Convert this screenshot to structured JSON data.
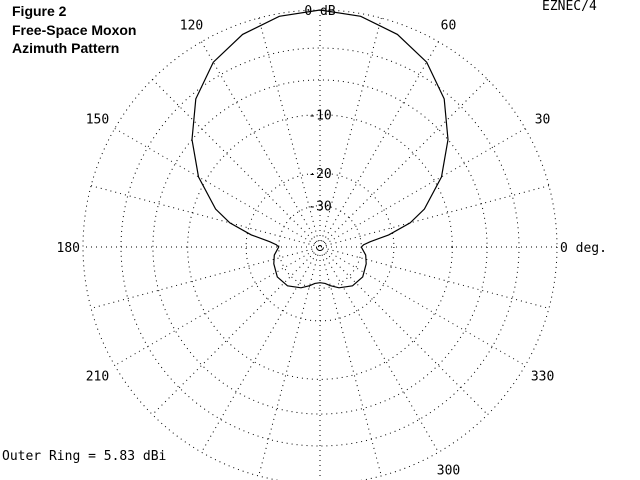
{
  "chart_data": {
    "type": "polar",
    "title_lines": [
      "Figure 2",
      "Free-Space Moxon",
      "Azimuth Pattern"
    ],
    "program": "EZNEC/4",
    "footer": "Outer Ring = 5.83 dBi",
    "ring_labels": [
      "0 dB",
      "-10",
      "-20",
      "-30"
    ],
    "angle_labels": [
      {
        "angle": 0,
        "text": "0 deg."
      },
      {
        "angle": 30,
        "text": "30"
      },
      {
        "angle": 60,
        "text": "60"
      },
      {
        "angle": 120,
        "text": "120"
      },
      {
        "angle": 150,
        "text": "150"
      },
      {
        "angle": 180,
        "text": "180"
      },
      {
        "angle": 210,
        "text": "210"
      },
      {
        "angle": 300,
        "text": "300"
      },
      {
        "angle": 330,
        "text": "330"
      }
    ],
    "outer_ring_dbi": 5.83,
    "series": [
      {
        "values": [
          {
            "az": 0,
            "db": -30.0
          },
          {
            "az": 3,
            "db": -29.0
          },
          {
            "az": 6,
            "db": -26.5
          },
          {
            "az": 10,
            "db": -21.0
          },
          {
            "az": 15,
            "db": -16.0
          },
          {
            "az": 20,
            "db": -13.0
          },
          {
            "az": 30,
            "db": -9.0
          },
          {
            "az": 40,
            "db": -6.0
          },
          {
            "az": 50,
            "db": -3.5
          },
          {
            "az": 60,
            "db": -1.8
          },
          {
            "az": 70,
            "db": -0.8
          },
          {
            "az": 80,
            "db": -0.2
          },
          {
            "az": 90,
            "db": 0.0
          },
          {
            "az": 100,
            "db": -0.2
          },
          {
            "az": 110,
            "db": -0.8
          },
          {
            "az": 120,
            "db": -1.8
          },
          {
            "az": 130,
            "db": -3.5
          },
          {
            "az": 140,
            "db": -6.0
          },
          {
            "az": 150,
            "db": -9.0
          },
          {
            "az": 160,
            "db": -13.0
          },
          {
            "az": 165,
            "db": -16.0
          },
          {
            "az": 170,
            "db": -21.0
          },
          {
            "az": 174,
            "db": -26.5
          },
          {
            "az": 177,
            "db": -29.0
          },
          {
            "az": 180,
            "db": -30.0
          },
          {
            "az": 190,
            "db": -28.0
          },
          {
            "az": 200,
            "db": -27.0
          },
          {
            "az": 215,
            "db": -26.0
          },
          {
            "az": 230,
            "db": -26.5
          },
          {
            "az": 245,
            "db": -28.5
          },
          {
            "az": 255,
            "db": -30.5
          },
          {
            "az": 262,
            "db": -32.0
          },
          {
            "az": 270,
            "db": -32.5
          },
          {
            "az": 278,
            "db": -32.0
          },
          {
            "az": 285,
            "db": -30.5
          },
          {
            "az": 295,
            "db": -28.5
          },
          {
            "az": 310,
            "db": -26.5
          },
          {
            "az": 325,
            "db": -26.0
          },
          {
            "az": 340,
            "db": -27.0
          },
          {
            "az": 350,
            "db": -28.0
          },
          {
            "az": 360,
            "db": -30.0
          }
        ]
      }
    ]
  }
}
